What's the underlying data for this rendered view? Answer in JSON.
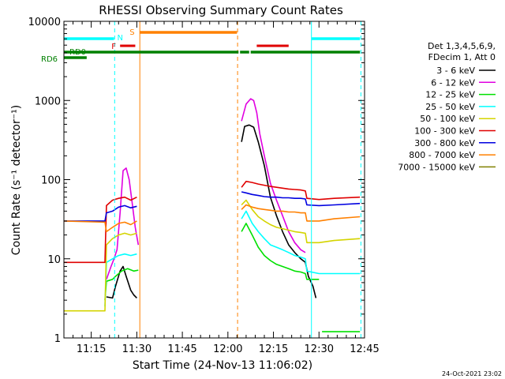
{
  "chart_data": {
    "type": "line",
    "title": "RHESSI Observing Summary Count Rates",
    "xlabel": "Start Time (24-Nov-13 11:06:02)",
    "ylabel": "Count Rate (s⁻¹ detector⁻¹)",
    "y_scale": "log",
    "ylim": [
      1,
      10000
    ],
    "xlim_minutes_after_11_00": [
      6.0,
      105.0
    ],
    "x_tick_labels": [
      "11:15",
      "11:30",
      "11:45",
      "12:00",
      "12:15",
      "12:30",
      "12:45"
    ],
    "x_tick_minutes": [
      15,
      30,
      45,
      60,
      75,
      90,
      105
    ],
    "y_tick_labels": [
      "1",
      "10",
      "100",
      "1000",
      "10000"
    ],
    "y_tick_values": [
      1,
      10,
      100,
      1000,
      10000
    ],
    "legend_header": [
      "Det 1,3,4,5,6,9,",
      "FDecim 1, Att 0"
    ],
    "legend_placement": "right",
    "footer_date": "24-Oct-2021 23:02",
    "series": [
      {
        "name": "3 - 6 keV",
        "color": "#000000",
        "points": [
          [
            6,
            0
          ],
          [
            19.5,
            0
          ],
          [
            20,
            3.3
          ],
          [
            22,
            3.2
          ],
          [
            23,
            4.5
          ],
          [
            24.5,
            7
          ],
          [
            25.5,
            8
          ],
          [
            26.5,
            6
          ],
          [
            28,
            4
          ],
          [
            29,
            3.5
          ],
          [
            30,
            3.2
          ],
          [
            31,
            0
          ],
          [
            64,
            0
          ],
          [
            64.5,
            300
          ],
          [
            65.5,
            470
          ],
          [
            67,
            490
          ],
          [
            68.5,
            460
          ],
          [
            70,
            300
          ],
          [
            72,
            150
          ],
          [
            74,
            60
          ],
          [
            76,
            35
          ],
          [
            78,
            22
          ],
          [
            80,
            15
          ],
          [
            82,
            12
          ],
          [
            84,
            10
          ],
          [
            85.5,
            9
          ],
          [
            86.5,
            6
          ],
          [
            88,
            4.5
          ],
          [
            89,
            3.2
          ],
          [
            90,
            0
          ]
        ]
      },
      {
        "name": "6 - 12 keV",
        "color": "#e000e0",
        "points": [
          [
            6,
            0
          ],
          [
            19.5,
            0
          ],
          [
            20,
            5.5
          ],
          [
            21.5,
            8
          ],
          [
            22.5,
            10
          ],
          [
            23.5,
            13
          ],
          [
            24.5,
            38
          ],
          [
            25.5,
            130
          ],
          [
            26.5,
            140
          ],
          [
            27.5,
            100
          ],
          [
            28.5,
            50
          ],
          [
            29.5,
            25
          ],
          [
            30.5,
            15
          ],
          [
            31,
            0
          ],
          [
            64,
            0
          ],
          [
            64.5,
            550
          ],
          [
            66,
            900
          ],
          [
            67.5,
            1050
          ],
          [
            68.5,
            1000
          ],
          [
            69.5,
            700
          ],
          [
            70.5,
            380
          ],
          [
            72,
            200
          ],
          [
            74,
            90
          ],
          [
            76,
            55
          ],
          [
            78,
            35
          ],
          [
            80,
            22
          ],
          [
            82,
            16
          ],
          [
            84,
            13
          ],
          [
            85.5,
            12
          ],
          [
            86,
            0
          ]
        ]
      },
      {
        "name": "12 - 25 keV",
        "color": "#00e000",
        "points": [
          [
            19.5,
            3.0
          ],
          [
            20,
            5.2
          ],
          [
            22,
            5.5
          ],
          [
            23,
            6
          ],
          [
            25,
            7
          ],
          [
            27,
            7.5
          ],
          [
            29,
            7
          ],
          [
            30.5,
            7.2
          ],
          [
            31,
            0
          ],
          [
            64,
            0
          ],
          [
            64.5,
            22
          ],
          [
            66,
            28
          ],
          [
            68,
            20
          ],
          [
            70,
            14
          ],
          [
            72,
            11
          ],
          [
            74,
            9.5
          ],
          [
            76,
            8.5
          ],
          [
            78,
            8
          ],
          [
            80,
            7.5
          ],
          [
            82,
            7
          ],
          [
            84,
            6.8
          ],
          [
            85.5,
            6.5
          ],
          [
            86,
            5.5
          ],
          [
            90,
            5.5
          ],
          [
            90.2,
            0
          ],
          [
            91,
            1.2
          ],
          [
            103.5,
            1.2
          ]
        ]
      },
      {
        "name": "25 - 50 keV",
        "color": "#00ffff",
        "points": [
          [
            19.5,
            2.5
          ],
          [
            20,
            9
          ],
          [
            22,
            10
          ],
          [
            24,
            11
          ],
          [
            26,
            11.5
          ],
          [
            28,
            11
          ],
          [
            30,
            11.5
          ],
          [
            31,
            0
          ],
          [
            64,
            0
          ],
          [
            64.5,
            32
          ],
          [
            66,
            40
          ],
          [
            68,
            28
          ],
          [
            70,
            22
          ],
          [
            72,
            18
          ],
          [
            74,
            15
          ],
          [
            76,
            14
          ],
          [
            78,
            13
          ],
          [
            80,
            12
          ],
          [
            82,
            11
          ],
          [
            84,
            10.5
          ],
          [
            85.5,
            10
          ],
          [
            86,
            7
          ],
          [
            90,
            6.5
          ],
          [
            103.5,
            6.5
          ]
        ]
      },
      {
        "name": "50 - 100 keV",
        "color": "#d4d400",
        "points": [
          [
            6,
            2.2
          ],
          [
            19.5,
            2.2
          ],
          [
            20,
            15
          ],
          [
            22,
            18
          ],
          [
            24,
            20
          ],
          [
            26,
            21
          ],
          [
            28,
            20
          ],
          [
            30,
            21
          ],
          [
            31,
            0
          ],
          [
            64,
            0
          ],
          [
            64.5,
            48
          ],
          [
            66,
            55
          ],
          [
            68,
            42
          ],
          [
            70,
            34
          ],
          [
            72,
            30
          ],
          [
            74,
            27
          ],
          [
            76,
            25
          ],
          [
            78,
            24
          ],
          [
            80,
            23
          ],
          [
            82,
            22
          ],
          [
            84,
            21.5
          ],
          [
            85.5,
            21
          ],
          [
            86,
            16
          ],
          [
            90,
            16
          ],
          [
            95,
            17
          ],
          [
            103.5,
            18
          ]
        ]
      },
      {
        "name": "100 - 300 keV",
        "color": "#e00000",
        "points": [
          [
            6,
            9
          ],
          [
            19.5,
            9
          ],
          [
            20,
            47
          ],
          [
            22,
            55
          ],
          [
            24,
            58
          ],
          [
            26,
            60
          ],
          [
            28,
            55
          ],
          [
            30,
            60
          ],
          [
            31,
            0
          ],
          [
            64,
            0
          ],
          [
            64.5,
            80
          ],
          [
            66,
            95
          ],
          [
            68,
            92
          ],
          [
            70,
            88
          ],
          [
            72,
            85
          ],
          [
            74,
            82
          ],
          [
            76,
            80
          ],
          [
            78,
            78
          ],
          [
            80,
            76
          ],
          [
            82,
            75
          ],
          [
            84,
            74
          ],
          [
            85.5,
            72
          ],
          [
            86,
            58
          ],
          [
            90,
            56
          ],
          [
            95,
            58
          ],
          [
            103.5,
            60
          ]
        ]
      },
      {
        "name": "300 - 800 keV",
        "color": "#0000e0",
        "points": [
          [
            6,
            30
          ],
          [
            19.5,
            30
          ],
          [
            20,
            38
          ],
          [
            22,
            40
          ],
          [
            24,
            45
          ],
          [
            26,
            47
          ],
          [
            28,
            44
          ],
          [
            30,
            46
          ],
          [
            31,
            0
          ],
          [
            64,
            0
          ],
          [
            64.5,
            70
          ],
          [
            66,
            68
          ],
          [
            68,
            65
          ],
          [
            70,
            63
          ],
          [
            72,
            61
          ],
          [
            74,
            60
          ],
          [
            76,
            60
          ],
          [
            78,
            59
          ],
          [
            80,
            59
          ],
          [
            82,
            58
          ],
          [
            84,
            58
          ],
          [
            85.5,
            57
          ],
          [
            86,
            48
          ],
          [
            90,
            47
          ],
          [
            95,
            48
          ],
          [
            103.5,
            50
          ]
        ]
      },
      {
        "name": "800 - 7000 keV",
        "color": "#ff8000",
        "points": [
          [
            6,
            30
          ],
          [
            19.5,
            29
          ],
          [
            20,
            22
          ],
          [
            22,
            25
          ],
          [
            24,
            28
          ],
          [
            26,
            29
          ],
          [
            28,
            27
          ],
          [
            30,
            30
          ],
          [
            31,
            0
          ],
          [
            64,
            0
          ],
          [
            64.5,
            42
          ],
          [
            66,
            48
          ],
          [
            68,
            45
          ],
          [
            70,
            43
          ],
          [
            72,
            42
          ],
          [
            74,
            41
          ],
          [
            76,
            40
          ],
          [
            78,
            40
          ],
          [
            80,
            39
          ],
          [
            82,
            39
          ],
          [
            84,
            38
          ],
          [
            85.5,
            38
          ],
          [
            86,
            30
          ],
          [
            90,
            30
          ],
          [
            95,
            32
          ],
          [
            103.5,
            34
          ]
        ]
      },
      {
        "name": "7000 - 15000 keV",
        "color": "#808000",
        "points": []
      }
    ],
    "flag_bars": [
      {
        "label": "RD6",
        "color": "#008000",
        "segments": [
          [
            6,
            22.5
          ],
          [
            22.5,
            63.5
          ],
          [
            64,
            67
          ],
          [
            67.5,
            103.5
          ]
        ]
      },
      {
        "label": "RD0",
        "color": "#008000",
        "segments": []
      },
      {
        "label": "N",
        "color": "#00ffff",
        "segments": [
          [
            6,
            22.5
          ],
          [
            87.5,
            103.5
          ]
        ]
      },
      {
        "label": "F",
        "color": "#e00000",
        "segments": [
          [
            24.5,
            29.5
          ],
          [
            69.5,
            80
          ]
        ]
      },
      {
        "label": "S",
        "color": "#ff8000",
        "segments": [
          [
            31,
            63
          ]
        ]
      }
    ],
    "vertical_markers": [
      {
        "minute": 22.7,
        "color": "#00ffff",
        "style": "dashed"
      },
      {
        "minute": 31.0,
        "color": "#ff8000",
        "style": "solid"
      },
      {
        "minute": 63.2,
        "color": "#ff8000",
        "style": "dashed"
      },
      {
        "minute": 87.5,
        "color": "#00ffff",
        "style": "solid"
      },
      {
        "minute": 103.8,
        "color": "#00ffff",
        "style": "dashed"
      }
    ]
  }
}
